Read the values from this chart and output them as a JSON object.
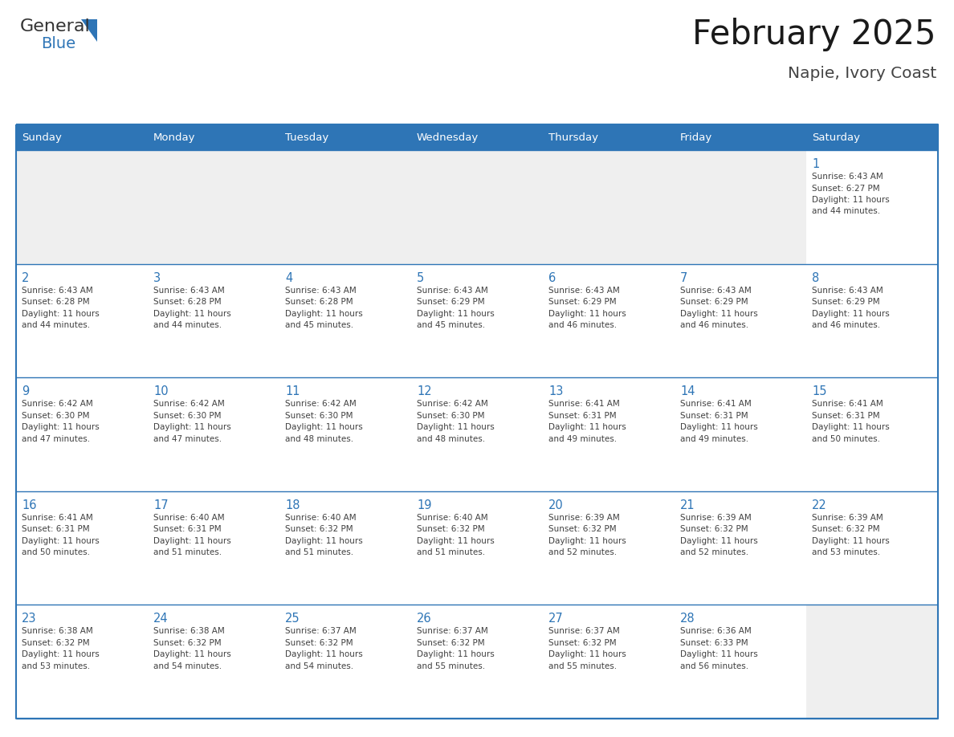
{
  "title": "February 2025",
  "subtitle": "Napie, Ivory Coast",
  "header_bg": "#2E75B6",
  "header_text_color": "#FFFFFF",
  "cell_bg_white": "#FFFFFF",
  "cell_bg_gray": "#EFEFEF",
  "border_color": "#2E75B6",
  "outer_border_color": "#2E75B6",
  "day_number_color": "#2E75B6",
  "cell_text_color": "#404040",
  "days_of_week": [
    "Sunday",
    "Monday",
    "Tuesday",
    "Wednesday",
    "Thursday",
    "Friday",
    "Saturday"
  ],
  "calendar_data": [
    [
      null,
      null,
      null,
      null,
      null,
      null,
      {
        "day": 1,
        "sunrise": "6:43 AM",
        "sunset": "6:27 PM",
        "daylight_h": "11 hours",
        "daylight_m": "and 44 minutes."
      }
    ],
    [
      {
        "day": 2,
        "sunrise": "6:43 AM",
        "sunset": "6:28 PM",
        "daylight_h": "11 hours",
        "daylight_m": "and 44 minutes."
      },
      {
        "day": 3,
        "sunrise": "6:43 AM",
        "sunset": "6:28 PM",
        "daylight_h": "11 hours",
        "daylight_m": "and 44 minutes."
      },
      {
        "day": 4,
        "sunrise": "6:43 AM",
        "sunset": "6:28 PM",
        "daylight_h": "11 hours",
        "daylight_m": "and 45 minutes."
      },
      {
        "day": 5,
        "sunrise": "6:43 AM",
        "sunset": "6:29 PM",
        "daylight_h": "11 hours",
        "daylight_m": "and 45 minutes."
      },
      {
        "day": 6,
        "sunrise": "6:43 AM",
        "sunset": "6:29 PM",
        "daylight_h": "11 hours",
        "daylight_m": "and 46 minutes."
      },
      {
        "day": 7,
        "sunrise": "6:43 AM",
        "sunset": "6:29 PM",
        "daylight_h": "11 hours",
        "daylight_m": "and 46 minutes."
      },
      {
        "day": 8,
        "sunrise": "6:43 AM",
        "sunset": "6:29 PM",
        "daylight_h": "11 hours",
        "daylight_m": "and 46 minutes."
      }
    ],
    [
      {
        "day": 9,
        "sunrise": "6:42 AM",
        "sunset": "6:30 PM",
        "daylight_h": "11 hours",
        "daylight_m": "and 47 minutes."
      },
      {
        "day": 10,
        "sunrise": "6:42 AM",
        "sunset": "6:30 PM",
        "daylight_h": "11 hours",
        "daylight_m": "and 47 minutes."
      },
      {
        "day": 11,
        "sunrise": "6:42 AM",
        "sunset": "6:30 PM",
        "daylight_h": "11 hours",
        "daylight_m": "and 48 minutes."
      },
      {
        "day": 12,
        "sunrise": "6:42 AM",
        "sunset": "6:30 PM",
        "daylight_h": "11 hours",
        "daylight_m": "and 48 minutes."
      },
      {
        "day": 13,
        "sunrise": "6:41 AM",
        "sunset": "6:31 PM",
        "daylight_h": "11 hours",
        "daylight_m": "and 49 minutes."
      },
      {
        "day": 14,
        "sunrise": "6:41 AM",
        "sunset": "6:31 PM",
        "daylight_h": "11 hours",
        "daylight_m": "and 49 minutes."
      },
      {
        "day": 15,
        "sunrise": "6:41 AM",
        "sunset": "6:31 PM",
        "daylight_h": "11 hours",
        "daylight_m": "and 50 minutes."
      }
    ],
    [
      {
        "day": 16,
        "sunrise": "6:41 AM",
        "sunset": "6:31 PM",
        "daylight_h": "11 hours",
        "daylight_m": "and 50 minutes."
      },
      {
        "day": 17,
        "sunrise": "6:40 AM",
        "sunset": "6:31 PM",
        "daylight_h": "11 hours",
        "daylight_m": "and 51 minutes."
      },
      {
        "day": 18,
        "sunrise": "6:40 AM",
        "sunset": "6:32 PM",
        "daylight_h": "11 hours",
        "daylight_m": "and 51 minutes."
      },
      {
        "day": 19,
        "sunrise": "6:40 AM",
        "sunset": "6:32 PM",
        "daylight_h": "11 hours",
        "daylight_m": "and 51 minutes."
      },
      {
        "day": 20,
        "sunrise": "6:39 AM",
        "sunset": "6:32 PM",
        "daylight_h": "11 hours",
        "daylight_m": "and 52 minutes."
      },
      {
        "day": 21,
        "sunrise": "6:39 AM",
        "sunset": "6:32 PM",
        "daylight_h": "11 hours",
        "daylight_m": "and 52 minutes."
      },
      {
        "day": 22,
        "sunrise": "6:39 AM",
        "sunset": "6:32 PM",
        "daylight_h": "11 hours",
        "daylight_m": "and 53 minutes."
      }
    ],
    [
      {
        "day": 23,
        "sunrise": "6:38 AM",
        "sunset": "6:32 PM",
        "daylight_h": "11 hours",
        "daylight_m": "and 53 minutes."
      },
      {
        "day": 24,
        "sunrise": "6:38 AM",
        "sunset": "6:32 PM",
        "daylight_h": "11 hours",
        "daylight_m": "and 54 minutes."
      },
      {
        "day": 25,
        "sunrise": "6:37 AM",
        "sunset": "6:32 PM",
        "daylight_h": "11 hours",
        "daylight_m": "and 54 minutes."
      },
      {
        "day": 26,
        "sunrise": "6:37 AM",
        "sunset": "6:32 PM",
        "daylight_h": "11 hours",
        "daylight_m": "and 55 minutes."
      },
      {
        "day": 27,
        "sunrise": "6:37 AM",
        "sunset": "6:32 PM",
        "daylight_h": "11 hours",
        "daylight_m": "and 55 minutes."
      },
      {
        "day": 28,
        "sunrise": "6:36 AM",
        "sunset": "6:33 PM",
        "daylight_h": "11 hours",
        "daylight_m": "and 56 minutes."
      },
      null
    ]
  ],
  "logo_text1": "General",
  "logo_text2": "Blue",
  "logo_color1": "#333333",
  "logo_color2": "#2E75B6",
  "logo_triangle_color": "#2E75B6",
  "figsize": [
    11.88,
    9.18
  ],
  "dpi": 100
}
